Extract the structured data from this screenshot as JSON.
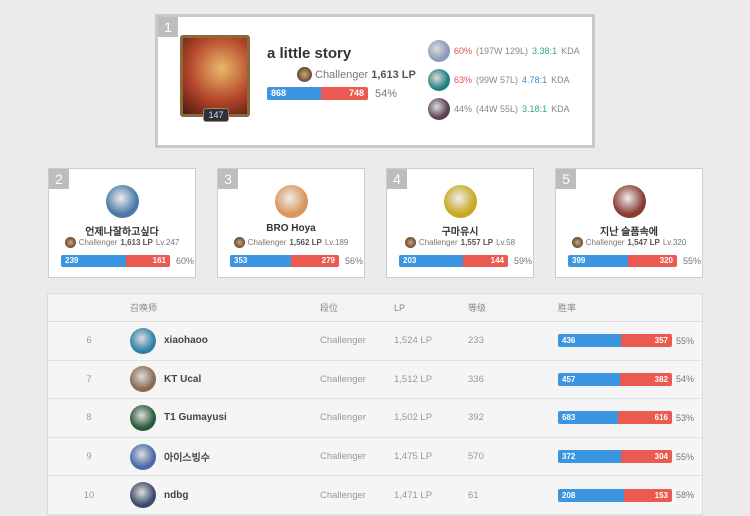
{
  "top": {
    "rank": "1",
    "name": "a little story",
    "tier": "Challenger",
    "lp": "1,613 LP",
    "level": "147",
    "wins": 868,
    "losses": 748,
    "winrate": "54%",
    "champions": [
      {
        "wr": "60%",
        "record": "(197W 129L)",
        "kda": "3.38:1",
        "kda_color": "grn",
        "wr_color": "red",
        "kda_label": "KDA",
        "color": "#8a9ab8"
      },
      {
        "wr": "63%",
        "record": "(99W 57L)",
        "kda": "4.78:1",
        "kda_color": "blu",
        "wr_color": "red",
        "kda_label": "KDA",
        "color": "#1f7f80"
      },
      {
        "wr": "44%",
        "record": "(44W 55L)",
        "kda": "3.18:1",
        "kda_color": "grn",
        "wr_color": "",
        "kda_label": "KDA",
        "color": "#5a4050"
      }
    ]
  },
  "cards": [
    {
      "rank": "2",
      "name": "언제나잘하고싶다",
      "tier": "Challenger",
      "lp": "1,613 LP",
      "lv": "Lv.247",
      "wins": 239,
      "losses": 161,
      "winrate": "60%",
      "color": "#4a78a8"
    },
    {
      "rank": "3",
      "name": "BRO Hoya",
      "tier": "Challenger",
      "lp": "1,562 LP",
      "lv": "Lv.189",
      "wins": 353,
      "losses": 279,
      "winrate": "56%",
      "color": "#d9955a"
    },
    {
      "rank": "4",
      "name": "구마유시",
      "tier": "Challenger",
      "lp": "1,557 LP",
      "lv": "Lv.58",
      "wins": 203,
      "losses": 144,
      "winrate": "59%",
      "color": "#c9a820"
    },
    {
      "rank": "5",
      "name": "지난 슬픔속에",
      "tier": "Challenger",
      "lp": "1,547 LP",
      "lv": "Lv.320",
      "wins": 399,
      "losses": 320,
      "winrate": "55%",
      "color": "#8a3a30"
    }
  ],
  "table": {
    "headers": [
      "",
      "召唤师",
      "段位",
      "LP",
      "等级",
      "胜率"
    ],
    "rows": [
      {
        "rank": "6",
        "name": "xiaohaoo",
        "tier": "Challenger",
        "lp": "1,524 LP",
        "level": "233",
        "wins": 436,
        "losses": 357,
        "winrate": "55%",
        "color": "#2f80a8"
      },
      {
        "rank": "7",
        "name": "KT Ucal",
        "tier": "Challenger",
        "lp": "1,512 LP",
        "level": "336",
        "wins": 457,
        "losses": 382,
        "winrate": "54%",
        "color": "#8a6a50"
      },
      {
        "rank": "8",
        "name": "T1 Gumayusi",
        "tier": "Challenger",
        "lp": "1,502 LP",
        "level": "392",
        "wins": 683,
        "losses": 616,
        "winrate": "53%",
        "color": "#2a5a3a"
      },
      {
        "rank": "9",
        "name": "아이스빙수",
        "tier": "Challenger",
        "lp": "1,475 LP",
        "level": "570",
        "wins": 372,
        "losses": 304,
        "winrate": "55%",
        "color": "#4a68a8"
      },
      {
        "rank": "10",
        "name": "ndbg",
        "tier": "Challenger",
        "lp": "1,471 LP",
        "level": "61",
        "wins": 208,
        "losses": 153,
        "winrate": "58%",
        "color": "#3a4a6a"
      }
    ]
  }
}
